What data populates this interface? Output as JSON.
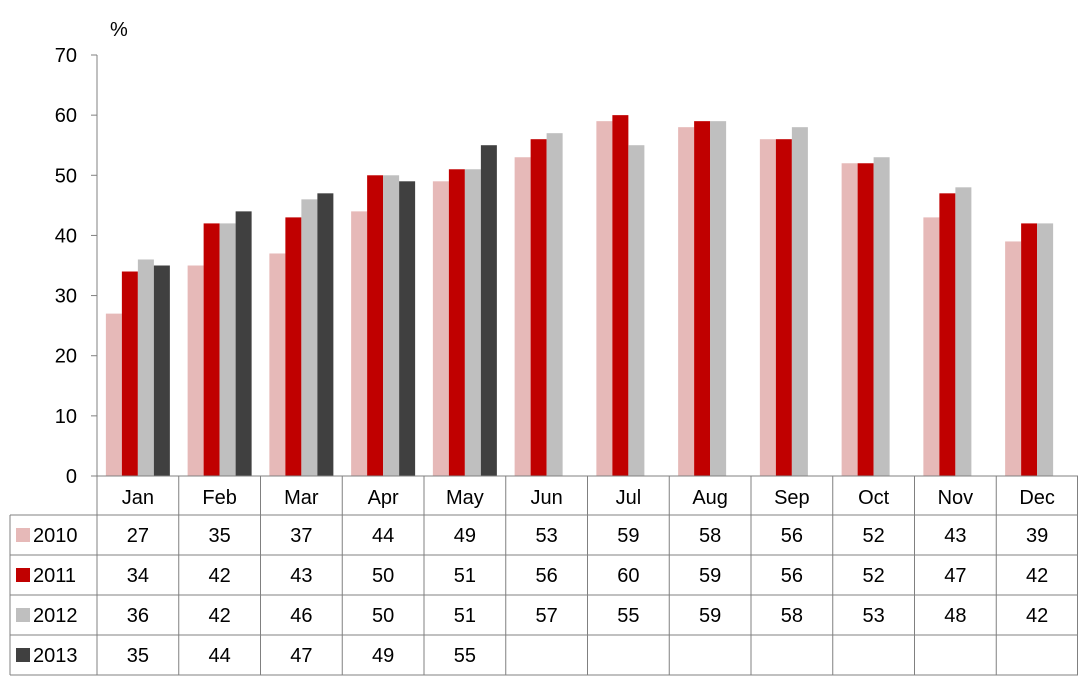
{
  "chart_data": {
    "type": "bar",
    "title": "",
    "xlabel": "",
    "ylabel": "%",
    "ylim": [
      0,
      70
    ],
    "y_ticks": [
      0,
      10,
      20,
      30,
      40,
      50,
      60,
      70
    ],
    "grid": false,
    "legend": "data-table",
    "categories": [
      "Jan",
      "Feb",
      "Mar",
      "Apr",
      "May",
      "Jun",
      "Jul",
      "Aug",
      "Sep",
      "Oct",
      "Nov",
      "Dec"
    ],
    "series": [
      {
        "name": "2010",
        "color": "#e6b9b8",
        "values": [
          27,
          35,
          37,
          44,
          49,
          53,
          59,
          58,
          56,
          52,
          43,
          39
        ]
      },
      {
        "name": "2011",
        "color": "#c00000",
        "values": [
          34,
          42,
          43,
          50,
          51,
          56,
          60,
          59,
          56,
          52,
          47,
          42
        ]
      },
      {
        "name": "2012",
        "color": "#bfbfbf",
        "values": [
          36,
          42,
          46,
          50,
          51,
          57,
          55,
          59,
          58,
          53,
          48,
          42
        ]
      },
      {
        "name": "2013",
        "color": "#404040",
        "values": [
          35,
          44,
          47,
          49,
          55,
          null,
          null,
          null,
          null,
          null,
          null,
          null
        ]
      }
    ]
  }
}
